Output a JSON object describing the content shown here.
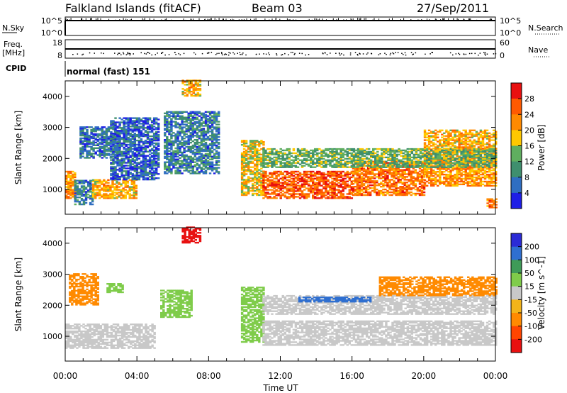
{
  "header": {
    "station": "Falkland Islands (fitACF)",
    "beam": "Beam 03",
    "date": "27/Sep/2011"
  },
  "nsky_panel": {
    "label": "N.Sky",
    "right_label": "N.Search",
    "left_ticks": [
      "10^5",
      "10^0"
    ],
    "right_ticks": [
      "10^5",
      "10^0"
    ]
  },
  "freq_panel": {
    "label_line1": "Freq.",
    "label_line2": "[MHz]",
    "right_label": "Nave",
    "left_ticks": [
      "18",
      "8"
    ],
    "right_ticks": [
      "60",
      "0"
    ]
  },
  "cpid_panel": {
    "label": "CPID",
    "mode": "normal (fast) 151"
  },
  "colors": {
    "power": [
      "#1e1ee6",
      "#2f6ec2",
      "#3f8f6e",
      "#5fae5f",
      "#ffc800",
      "#ff8a00",
      "#ff5a00",
      "#e81010"
    ],
    "velocity": [
      "#2b2bd6",
      "#2f6fd0",
      "#3f9b58",
      "#7fcc4a",
      "#c8c8c8",
      "#f3b41a",
      "#ff8a00",
      "#ff4500",
      "#e81010"
    ]
  },
  "chart_data": [
    {
      "type": "heatmap",
      "title": "",
      "xlabel": "Time UT",
      "ylabel": "Slant Range [km]",
      "xlim": [
        "00:00",
        "24:00"
      ],
      "ylim": [
        200,
        4500
      ],
      "x_ticks": [
        "00:00",
        "04:00",
        "08:00",
        "12:00",
        "16:00",
        "20:00",
        "00:00"
      ],
      "y_ticks": [
        "1000",
        "2000",
        "3000",
        "4000"
      ],
      "colorbar": {
        "label": "Power [dB]",
        "ticks": [
          "4",
          "8",
          "12",
          "16",
          "20",
          "24",
          "28"
        ],
        "range": [
          0,
          30
        ]
      },
      "regions": [
        {
          "t": [
            0.0,
            0.5
          ],
          "r": [
            700,
            1600
          ],
          "v": 22
        },
        {
          "t": [
            0.5,
            1.5
          ],
          "r": [
            500,
            1300
          ],
          "v": 8
        },
        {
          "t": [
            1.5,
            4.0
          ],
          "r": [
            700,
            1300
          ],
          "v": 20
        },
        {
          "t": [
            0.8,
            3.0
          ],
          "r": [
            2000,
            3000
          ],
          "v": 7
        },
        {
          "t": [
            2.5,
            5.2
          ],
          "r": [
            1300,
            3300
          ],
          "v": 6
        },
        {
          "t": [
            5.5,
            8.5
          ],
          "r": [
            1500,
            3500
          ],
          "v": 8
        },
        {
          "t": [
            6.5,
            7.5
          ],
          "r": [
            4000,
            4500
          ],
          "v": 20
        },
        {
          "t": [
            9.8,
            11.0
          ],
          "r": [
            800,
            2600
          ],
          "v": 18
        },
        {
          "t": [
            11.0,
            16.0
          ],
          "r": [
            700,
            1600
          ],
          "v": 26
        },
        {
          "t": [
            16.0,
            20.0
          ],
          "r": [
            800,
            1900
          ],
          "v": 24
        },
        {
          "t": [
            20.0,
            24.0
          ],
          "r": [
            1100,
            2300
          ],
          "v": 22
        },
        {
          "t": [
            11.0,
            24.0
          ],
          "r": [
            1700,
            2300
          ],
          "v": 13
        },
        {
          "t": [
            20.0,
            24.0
          ],
          "r": [
            2300,
            2900
          ],
          "v": 20
        },
        {
          "t": [
            23.5,
            24.0
          ],
          "r": [
            400,
            700
          ],
          "v": 24
        }
      ]
    },
    {
      "type": "heatmap",
      "title": "",
      "xlabel": "Time UT",
      "ylabel": "Slant Range [km]",
      "xlim": [
        "00:00",
        "24:00"
      ],
      "ylim": [
        200,
        4500
      ],
      "x_ticks": [
        "00:00",
        "04:00",
        "08:00",
        "12:00",
        "16:00",
        "20:00",
        "00:00"
      ],
      "y_ticks": [
        "1000",
        "2000",
        "3000",
        "4000"
      ],
      "colorbar": {
        "label": "Velocity [m s^-1]",
        "ticks": [
          "200",
          "100",
          "50",
          "15",
          "-15",
          "-50",
          "-100",
          "-200"
        ],
        "range": [
          -250,
          250
        ]
      },
      "regions": [
        {
          "t": [
            0.0,
            5.0
          ],
          "r": [
            600,
            1400
          ],
          "v": 0
        },
        {
          "t": [
            0.2,
            1.8
          ],
          "r": [
            2000,
            3000
          ],
          "v": -60
        },
        {
          "t": [
            2.3,
            3.2
          ],
          "r": [
            2400,
            2700
          ],
          "v": 30
        },
        {
          "t": [
            5.3,
            7.0
          ],
          "r": [
            1600,
            2500
          ],
          "v": 30
        },
        {
          "t": [
            6.5,
            7.5
          ],
          "r": [
            4000,
            4500
          ],
          "v": -220
        },
        {
          "t": [
            9.8,
            11.0
          ],
          "r": [
            800,
            2600
          ],
          "v": 40
        },
        {
          "t": [
            11.0,
            24.0
          ],
          "r": [
            700,
            1500
          ],
          "v": 0
        },
        {
          "t": [
            11.0,
            24.0
          ],
          "r": [
            1700,
            2300
          ],
          "v": 0
        },
        {
          "t": [
            17.5,
            24.0
          ],
          "r": [
            2300,
            2900
          ],
          "v": -60
        },
        {
          "t": [
            13.0,
            17.0
          ],
          "r": [
            2100,
            2250
          ],
          "v": 150
        }
      ]
    }
  ]
}
